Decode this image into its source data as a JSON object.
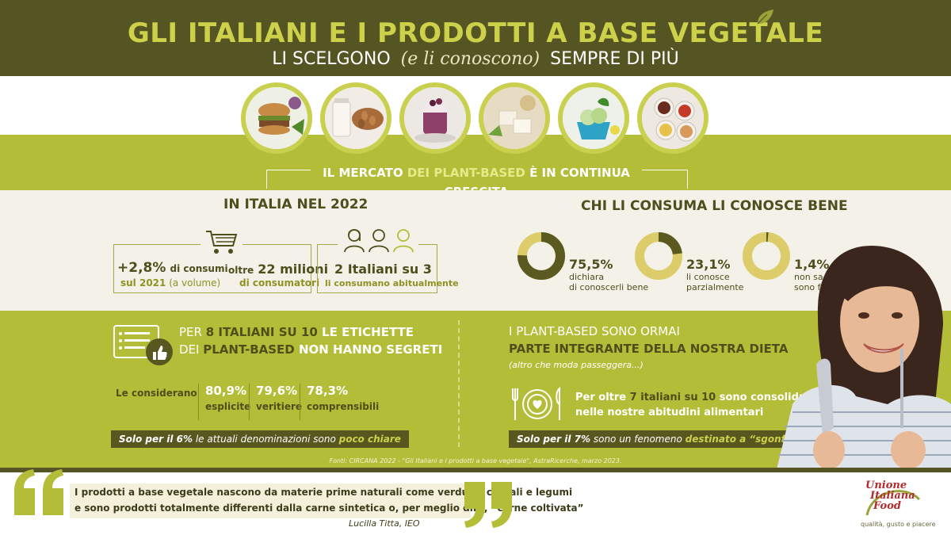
{
  "header": {
    "title": "GLI ITALIANI E I PRODOTTI A BASE VEGETALE",
    "subtitle_left": "LI SCELGONO",
    "subtitle_script": "(e li conoscono)",
    "subtitle_right": "SEMPRE DI PIÙ"
  },
  "food_images": [
    "burger-image",
    "milk-almonds-image",
    "yogurt-image",
    "tofu-image",
    "gelato-image",
    "sauces-image"
  ],
  "market": {
    "part1": "IL MERCATO ",
    "part2": "DEI PLANT-BASED",
    "part3": " È IN CONTINUA CRESCITA"
  },
  "italia": {
    "title": "IN ITALIA NEL 2022",
    "consumi_big": "+2,8%",
    "consumi_small": "di consumi",
    "consumi_sub": "sul 2021",
    "consumi_sub2": "(a volume)",
    "oltre": "oltre",
    "milioni_big": "22 milioni",
    "milioni_sub": "di consumatori",
    "italiani_big": "2 Italiani su 3",
    "italiani_sub": "li consumano abitualmente"
  },
  "conoscenza": {
    "title": "CHI LI CONSUMA LI CONOSCE BENE",
    "items": [
      {
        "pct": "75,5%",
        "line1": "dichiara",
        "line2": "di conoscerli bene",
        "value": 75.5
      },
      {
        "pct": "23,1%",
        "line1": "li conosce",
        "line2": "parzialmente",
        "value": 23.1
      },
      {
        "pct": "1,4%",
        "line1": "non sa di cosa",
        "line2": "sono fatti",
        "value": 1.4
      }
    ]
  },
  "etichette": {
    "line1_a": "PER ",
    "line1_b": "8 ITALIANI SU 10",
    "line1_c": " LE ETICHETTE",
    "line2_a": "DEI  ",
    "line2_b": "PLANT-BASED",
    "line2_c": " NON HANNO SEGRETI",
    "considerano": "Le considerano",
    "stats": [
      {
        "pct": "80,9%",
        "label": "esplicite"
      },
      {
        "pct": "79,6%",
        "label": "veritiere"
      },
      {
        "pct": "78,3%",
        "label": "comprensibili"
      }
    ],
    "pill_a": "Solo per il 6%",
    "pill_b": " le attuali denominazioni sono ",
    "pill_c": "poco chiare"
  },
  "dieta": {
    "line1": "I PLANT-BASED SONO ORMAI",
    "line2": "PARTE INTEGRANTE  DELLA NOSTRA DIETA",
    "line3": "(altro che moda passeggera...)",
    "text1_a": "Per oltre ",
    "text1_b": "7 italiani su 10",
    "text1_c": " sono consolidati",
    "text2": "nelle nostre abitudini alimentari",
    "pill_a": "Solo per il 7%",
    "pill_b": " sono un fenomeno ",
    "pill_c": "destinato a “sgonfiarsi”"
  },
  "sources": "Fonti: CIRCANA 2022 - \"Gli Italiani e i prodotti a base vegetale\", AstraRicerche, marzo 2023.",
  "quote": {
    "line1": "I prodotti a base vegetale nascono da materie prime naturali come verdure, cereali e legumi",
    "line2": "e sono prodotti totalmente differenti dalla carne sintetica o, per meglio dire, “carne coltivata”",
    "author": "Lucilla Titta, IEO"
  },
  "logo": {
    "line1": "Unione",
    "line2": "Italiana",
    "line3": "Food",
    "tagline": "qualità, gusto e piacere"
  },
  "colors": {
    "dark": "#555524",
    "lime": "#b4bd37",
    "cream": "#f4f1e8",
    "accent": "#cdd14a"
  }
}
